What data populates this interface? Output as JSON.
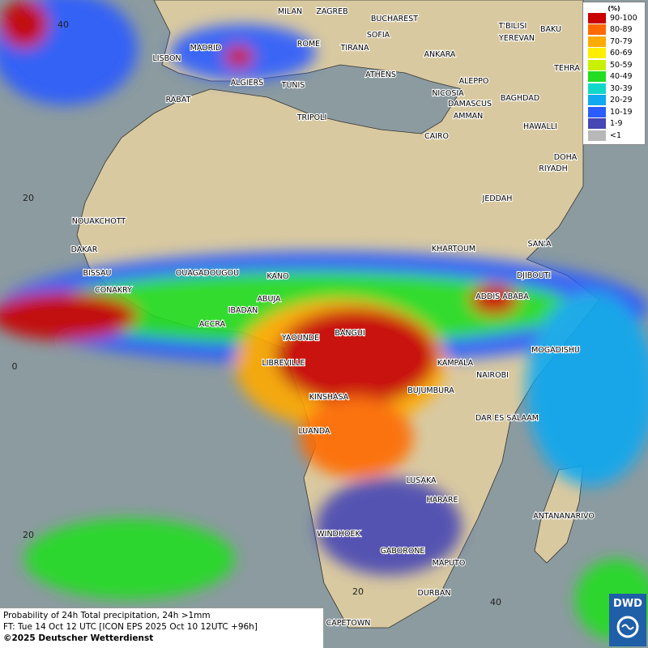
{
  "legend": {
    "title": "(%)",
    "items": [
      {
        "label": "90-100",
        "color": "#c80000"
      },
      {
        "label": "80-89",
        "color": "#ff6a00"
      },
      {
        "label": "70-79",
        "color": "#ffaa00"
      },
      {
        "label": "60-69",
        "color": "#ffee00"
      },
      {
        "label": "50-59",
        "color": "#c8f000"
      },
      {
        "label": "40-49",
        "color": "#22dd22"
      },
      {
        "label": "30-39",
        "color": "#10d8c8"
      },
      {
        "label": "20-29",
        "color": "#10a8f0"
      },
      {
        "label": "10-19",
        "color": "#2a5cff"
      },
      {
        "label": "1-9",
        "color": "#4646b4"
      },
      {
        "label": "<1",
        "color": "#b8b8b8"
      }
    ]
  },
  "cities": [
    "MILAN",
    "ZAGREB",
    "BUCHAREST",
    "T'BILISI",
    "BAKU",
    "MADRID",
    "ROME",
    "SOFIA",
    "YEREVAN",
    "LISBON",
    "TIRANA",
    "ANKARA",
    "TEHRA",
    "ATHENS",
    "ALGIERS",
    "TUNIS",
    "ALEPPO",
    "RABAT",
    "NICOSIA",
    "BAGHDAD",
    "TRIPOLI",
    "DAMASCUS",
    "AMMAN",
    "HAWALLI",
    "CAIRO",
    "DOHA",
    "RIYADH",
    "JEDDAH",
    "NOUAKCHOTT",
    "SAN'A",
    "KHARTOUM",
    "DAKAR",
    "BISSAU",
    "OUAGADOUGOU",
    "KANO",
    "DJIBOUTI",
    "CONAKRY",
    "ABUJA",
    "ADDIS ABABA",
    "IBADAN",
    "ACCRA",
    "BANGUI",
    "YAOUNDE",
    "MOGADISHU",
    "LIBREVILLE",
    "KAMPALA",
    "NAIROBI",
    "BUJUMBURA",
    "KINSHASA",
    "DAR ES SALAAM",
    "LUANDA",
    "LUSAKA",
    "HARARE",
    "ANTANANARIVO",
    "WINDHOEK",
    "GABORONE",
    "MAPUTO",
    "DURBAN",
    "CAPETOWN"
  ],
  "grid_labels": [
    "40",
    "20",
    "0",
    "20",
    "20",
    "40"
  ],
  "footer": {
    "line1": "Probability of 24h Total precipitation, 24h >1mm",
    "line2": "FT: Tue 14 Oct 12 UTC [ICON EPS 2025 Oct 10 12UTC +96h]",
    "line3": "©2025 Deutscher Wetterdienst"
  },
  "logo": "DWD"
}
